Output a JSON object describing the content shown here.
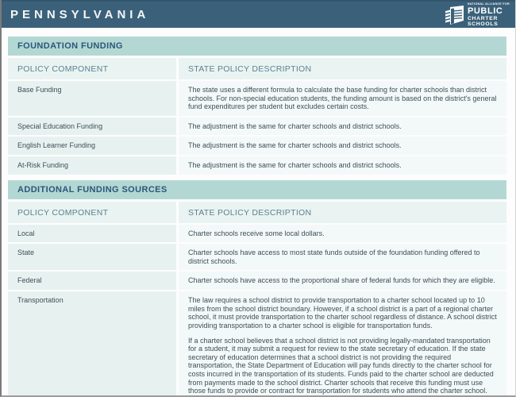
{
  "header": {
    "state_name": "PENNSYLVANIA",
    "logo": {
      "icon": "charter-schools-flag-icon",
      "small_line": "NATIONAL ALLIANCE FOR",
      "line1": "PUBLIC",
      "line2": "CHARTER",
      "line3": "SCHOOLS"
    }
  },
  "colors": {
    "header_bg": "#3b617a",
    "section_band_bg": "#b3d8d3",
    "column_header_bg": "#e9f4f2",
    "left_cell_bg": "#e7f2f0",
    "right_cell_bg": "#f3f9f8",
    "section_title_text": "#2b567a",
    "column_header_text": "#5d7f90",
    "body_text": "#3f4d56"
  },
  "sections": [
    {
      "title": "FOUNDATION FUNDING",
      "columns": [
        "POLICY COMPONENT",
        "STATE POLICY DESCRIPTION"
      ],
      "rows": [
        {
          "component": "Base Funding",
          "description": [
            "The state uses a different formula to calculate the base funding for charter schools than district schools. For non-special education students, the funding amount is based on the district's general fund expenditures per student but excludes certain costs."
          ]
        },
        {
          "component": "Special Education Funding",
          "description": [
            "The adjustment is the same for charter schools and district schools."
          ]
        },
        {
          "component": "English Learner Funding",
          "description": [
            "The adjustment is the same for charter schools and district schools."
          ]
        },
        {
          "component": "At-Risk Funding",
          "description": [
            "The adjustment is the same for charter schools and district schools."
          ]
        }
      ]
    },
    {
      "title": "ADDITIONAL FUNDING SOURCES",
      "columns": [
        "POLICY COMPONENT",
        "STATE POLICY DESCRIPTION"
      ],
      "rows": [
        {
          "component": "Local",
          "description": [
            "Charter schools receive some local dollars."
          ]
        },
        {
          "component": "State",
          "description": [
            "Charter schools have access to most state funds outside of the foundation funding offered to district schools."
          ]
        },
        {
          "component": "Federal",
          "description": [
            "Charter schools have access to the proportional share of federal funds for which they are eligible."
          ]
        },
        {
          "component": "Transportation",
          "description": [
            "The law requires a school district to provide transportation to a charter school located up to 10 miles from the school district boundary. However, if a school district is a part of a regional charter school, it must provide transportation to the charter school regardless of distance. A school district providing transportation to a charter school is eligible for transportation funds.",
            "If a charter school believes that a school district is not providing legally-mandated transportation for a student, it may submit a request for review to the state secretary of education. If the state secretary of education determines that a school district is not providing the required transportation, the State Department of Education will pay funds directly to the charter school for costs incurred in the transportation of its students. Funds paid to the charter school are deducted from payments made to the school district. Charter schools that receive this funding must use those funds to provide or contract for transportation for students who attend the charter school."
          ]
        }
      ]
    }
  ]
}
